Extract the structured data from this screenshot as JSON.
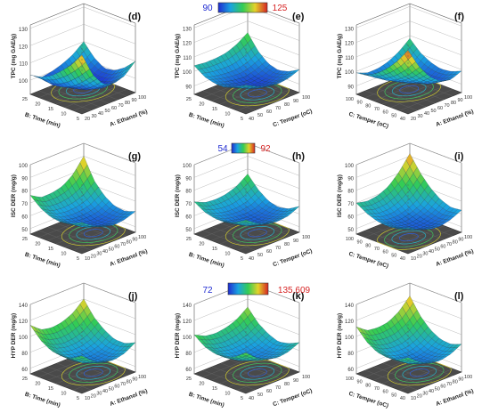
{
  "figure": {
    "colorbars": [
      {
        "low": "90",
        "high": "125",
        "low_color": "#1f2bd1",
        "high_color": "#d62424"
      },
      {
        "low": "54",
        "high": "92",
        "low_color": "#1f2bd1",
        "high_color": "#d62424"
      },
      {
        "low": "72",
        "high": "135.609",
        "low_color": "#1f2bd1",
        "high_color": "#d62424"
      }
    ]
  },
  "chart_data": [
    {
      "type": "surface",
      "panel": "(d)",
      "zlabel": "TPC (mg GAE/g)",
      "xlabel": "A: Ethanol (%)",
      "ylabel": "B: Time (min)",
      "zticks": [
        "100",
        "110",
        "120",
        "130"
      ],
      "xticks": [
        "20",
        "30",
        "40",
        "50",
        "60",
        "70",
        "80",
        "90",
        "100"
      ],
      "yticks": [
        "5",
        "10",
        "15",
        "20",
        "25"
      ],
      "zlim": [
        95,
        132
      ],
      "grid": [
        [
          126,
          112,
          104,
          102,
          104,
          110
        ],
        [
          118,
          106,
          99,
          97,
          99,
          104
        ],
        [
          112,
          101,
          96,
          95,
          96,
          100
        ],
        [
          107,
          98,
          95,
          95,
          96,
          99
        ],
        [
          104,
          97,
          96,
          97,
          99,
          103
        ],
        [
          103,
          99,
          100,
          102,
          105,
          110
        ]
      ]
    },
    {
      "type": "surface",
      "panel": "(e)",
      "zlabel": "TPC (mg GAE/g)",
      "xlabel": "C: Temper (oC)",
      "ylabel": "B: Time (min)",
      "zticks": [
        "90",
        "100",
        "110",
        "120",
        "130"
      ],
      "xticks": [
        "40",
        "50",
        "60",
        "70",
        "80",
        "90",
        "100"
      ],
      "yticks": [
        "5",
        "10",
        "15",
        "20",
        "25"
      ],
      "zlim": [
        88,
        132
      ],
      "grid": [
        [
          104,
          100,
          97,
          96,
          97,
          100
        ],
        [
          100,
          96,
          93,
          92,
          93,
          96
        ],
        [
          97,
          94,
          91,
          90,
          91,
          94
        ],
        [
          97,
          94,
          92,
          91,
          93,
          96
        ],
        [
          99,
          97,
          96,
          96,
          98,
          102
        ],
        [
          104,
          103,
          103,
          104,
          107,
          112
        ]
      ]
    },
    {
      "type": "surface",
      "panel": "(f)",
      "zlabel": "TPC (mg GAE/g)",
      "xlabel": "A: Ethanol (%)",
      "ylabel": "C: Temper (oC)",
      "zticks": [
        "90",
        "100",
        "110",
        "120",
        "130"
      ],
      "xticks": [
        "20",
        "30",
        "40",
        "50",
        "60",
        "70",
        "80",
        "90",
        "100"
      ],
      "yticks": [
        "40",
        "50",
        "60",
        "70",
        "80",
        "90",
        "100"
      ],
      "zlim": [
        88,
        132
      ],
      "grid": [
        [
          128,
          114,
          104,
          98,
          96,
          99
        ],
        [
          118,
          106,
          98,
          93,
          92,
          96
        ],
        [
          110,
          100,
          94,
          91,
          91,
          95
        ],
        [
          104,
          96,
          92,
          91,
          92,
          97
        ],
        [
          100,
          95,
          93,
          93,
          96,
          101
        ],
        [
          99,
          96,
          96,
          98,
          102,
          108
        ]
      ]
    },
    {
      "type": "surface",
      "panel": "(g)",
      "zlabel": "ISC DER (mg/g)",
      "xlabel": "A: Ethanol (%)",
      "ylabel": "B: Time (min)",
      "zticks": [
        "50",
        "60",
        "70",
        "80",
        "90",
        "100"
      ],
      "xticks": [
        "10",
        "20",
        "30",
        "40",
        "50",
        "60",
        "70",
        "80",
        "90",
        "100"
      ],
      "yticks": [
        "5",
        "10",
        "15",
        "20",
        "25"
      ],
      "zlim": [
        50,
        100
      ],
      "grid": [
        [
          70,
          64,
          60,
          58,
          59,
          62
        ],
        [
          66,
          60,
          57,
          55,
          56,
          59
        ],
        [
          64,
          59,
          56,
          55,
          56,
          60
        ],
        [
          65,
          60,
          58,
          58,
          60,
          65
        ],
        [
          69,
          64,
          63,
          64,
          67,
          74
        ],
        [
          76,
          71,
          71,
          73,
          79,
          90
        ]
      ]
    },
    {
      "type": "surface",
      "panel": "(h)",
      "zlabel": "ISC DER (mg/g)",
      "xlabel": "C: Temper (oC)",
      "ylabel": "B: Time (min)",
      "zticks": [
        "50",
        "60",
        "70",
        "80",
        "90",
        "100"
      ],
      "xticks": [
        "40",
        "50",
        "60",
        "70",
        "80",
        "90",
        "100"
      ],
      "yticks": [
        "5",
        "10",
        "15",
        "20",
        "25"
      ],
      "zlim": [
        50,
        100
      ],
      "grid": [
        [
          72,
          66,
          62,
          61,
          62,
          66
        ],
        [
          67,
          61,
          58,
          57,
          58,
          61
        ],
        [
          64,
          59,
          56,
          55,
          56,
          59
        ],
        [
          64,
          59,
          57,
          56,
          57,
          61
        ],
        [
          66,
          62,
          60,
          60,
          62,
          67
        ],
        [
          71,
          67,
          66,
          67,
          70,
          76
        ]
      ]
    },
    {
      "type": "surface",
      "panel": "(i)",
      "zlabel": "ISC DER (mg/g)",
      "xlabel": "A: Ethanol (%)",
      "ylabel": "C: Temper (oC)",
      "zticks": [
        "50",
        "60",
        "70",
        "80",
        "90",
        "100"
      ],
      "xticks": [
        "10",
        "20",
        "30",
        "40",
        "50",
        "60",
        "70",
        "80",
        "90",
        "100"
      ],
      "yticks": [
        "40",
        "50",
        "60",
        "70",
        "80",
        "90",
        "100"
      ],
      "zlim": [
        50,
        100
      ],
      "grid": [
        [
          66,
          61,
          58,
          57,
          59,
          63
        ],
        [
          62,
          58,
          55,
          55,
          57,
          62
        ],
        [
          61,
          57,
          55,
          56,
          59,
          65
        ],
        [
          62,
          58,
          57,
          59,
          63,
          71
        ],
        [
          65,
          62,
          62,
          65,
          71,
          80
        ],
        [
          70,
          68,
          69,
          73,
          81,
          92
        ]
      ]
    },
    {
      "type": "surface",
      "panel": "(j)",
      "zlabel": "HYP DER (mg/g)",
      "xlabel": "A: Ethanol (%)",
      "ylabel": "B: Time (min)",
      "zticks": [
        "60",
        "80",
        "100",
        "120",
        "140"
      ],
      "xticks": [
        "10",
        "20",
        "30",
        "40",
        "50",
        "60",
        "70",
        "80",
        "90",
        "100"
      ],
      "yticks": [
        "5",
        "10",
        "15",
        "20",
        "25"
      ],
      "zlim": [
        60,
        140
      ],
      "grid": [
        [
          100,
          88,
          81,
          79,
          82,
          90
        ],
        [
          92,
          81,
          75,
          73,
          76,
          84
        ],
        [
          90,
          79,
          74,
          73,
          76,
          84
        ],
        [
          92,
          82,
          78,
          78,
          82,
          91
        ],
        [
          100,
          90,
          86,
          87,
          92,
          102
        ],
        [
          114,
          103,
          100,
          102,
          108,
          120
        ]
      ]
    },
    {
      "type": "surface",
      "panel": "(k)",
      "zlabel": "HYP DER (mg/g)",
      "xlabel": "C: Temper (oC)",
      "ylabel": "B: Time (min)",
      "zticks": [
        "60",
        "80",
        "100",
        "120",
        "140"
      ],
      "xticks": [
        "40",
        "50",
        "60",
        "70",
        "80",
        "90",
        "100"
      ],
      "yticks": [
        "5",
        "10",
        "15",
        "20",
        "25"
      ],
      "zlim": [
        60,
        140
      ],
      "grid": [
        [
          104,
          92,
          85,
          82,
          84,
          90
        ],
        [
          94,
          84,
          78,
          76,
          78,
          84
        ],
        [
          88,
          79,
          74,
          73,
          75,
          81
        ],
        [
          88,
          80,
          76,
          76,
          79,
          86
        ],
        [
          92,
          85,
          82,
          83,
          87,
          95
        ],
        [
          102,
          95,
          93,
          95,
          100,
          110
        ]
      ]
    },
    {
      "type": "surface",
      "panel": "(l)",
      "zlabel": "HYP DER (mg/g)",
      "xlabel": "A: Ethanol (%)",
      "ylabel": "C: Temper (oC)",
      "zticks": [
        "60",
        "80",
        "100",
        "120",
        "140"
      ],
      "xticks": [
        "10",
        "20",
        "30",
        "40",
        "50",
        "60",
        "70",
        "80",
        "90",
        "100"
      ],
      "yticks": [
        "40",
        "50",
        "60",
        "70",
        "80",
        "90",
        "100"
      ],
      "zlim": [
        60,
        140
      ],
      "grid": [
        [
          98,
          87,
          80,
          78,
          81,
          88
        ],
        [
          90,
          80,
          74,
          73,
          76,
          83
        ],
        [
          88,
          78,
          73,
          72,
          76,
          84
        ],
        [
          90,
          81,
          77,
          77,
          82,
          91
        ],
        [
          98,
          89,
          86,
          87,
          93,
          104
        ],
        [
          112,
          102,
          100,
          102,
          110,
          124
        ]
      ]
    }
  ]
}
